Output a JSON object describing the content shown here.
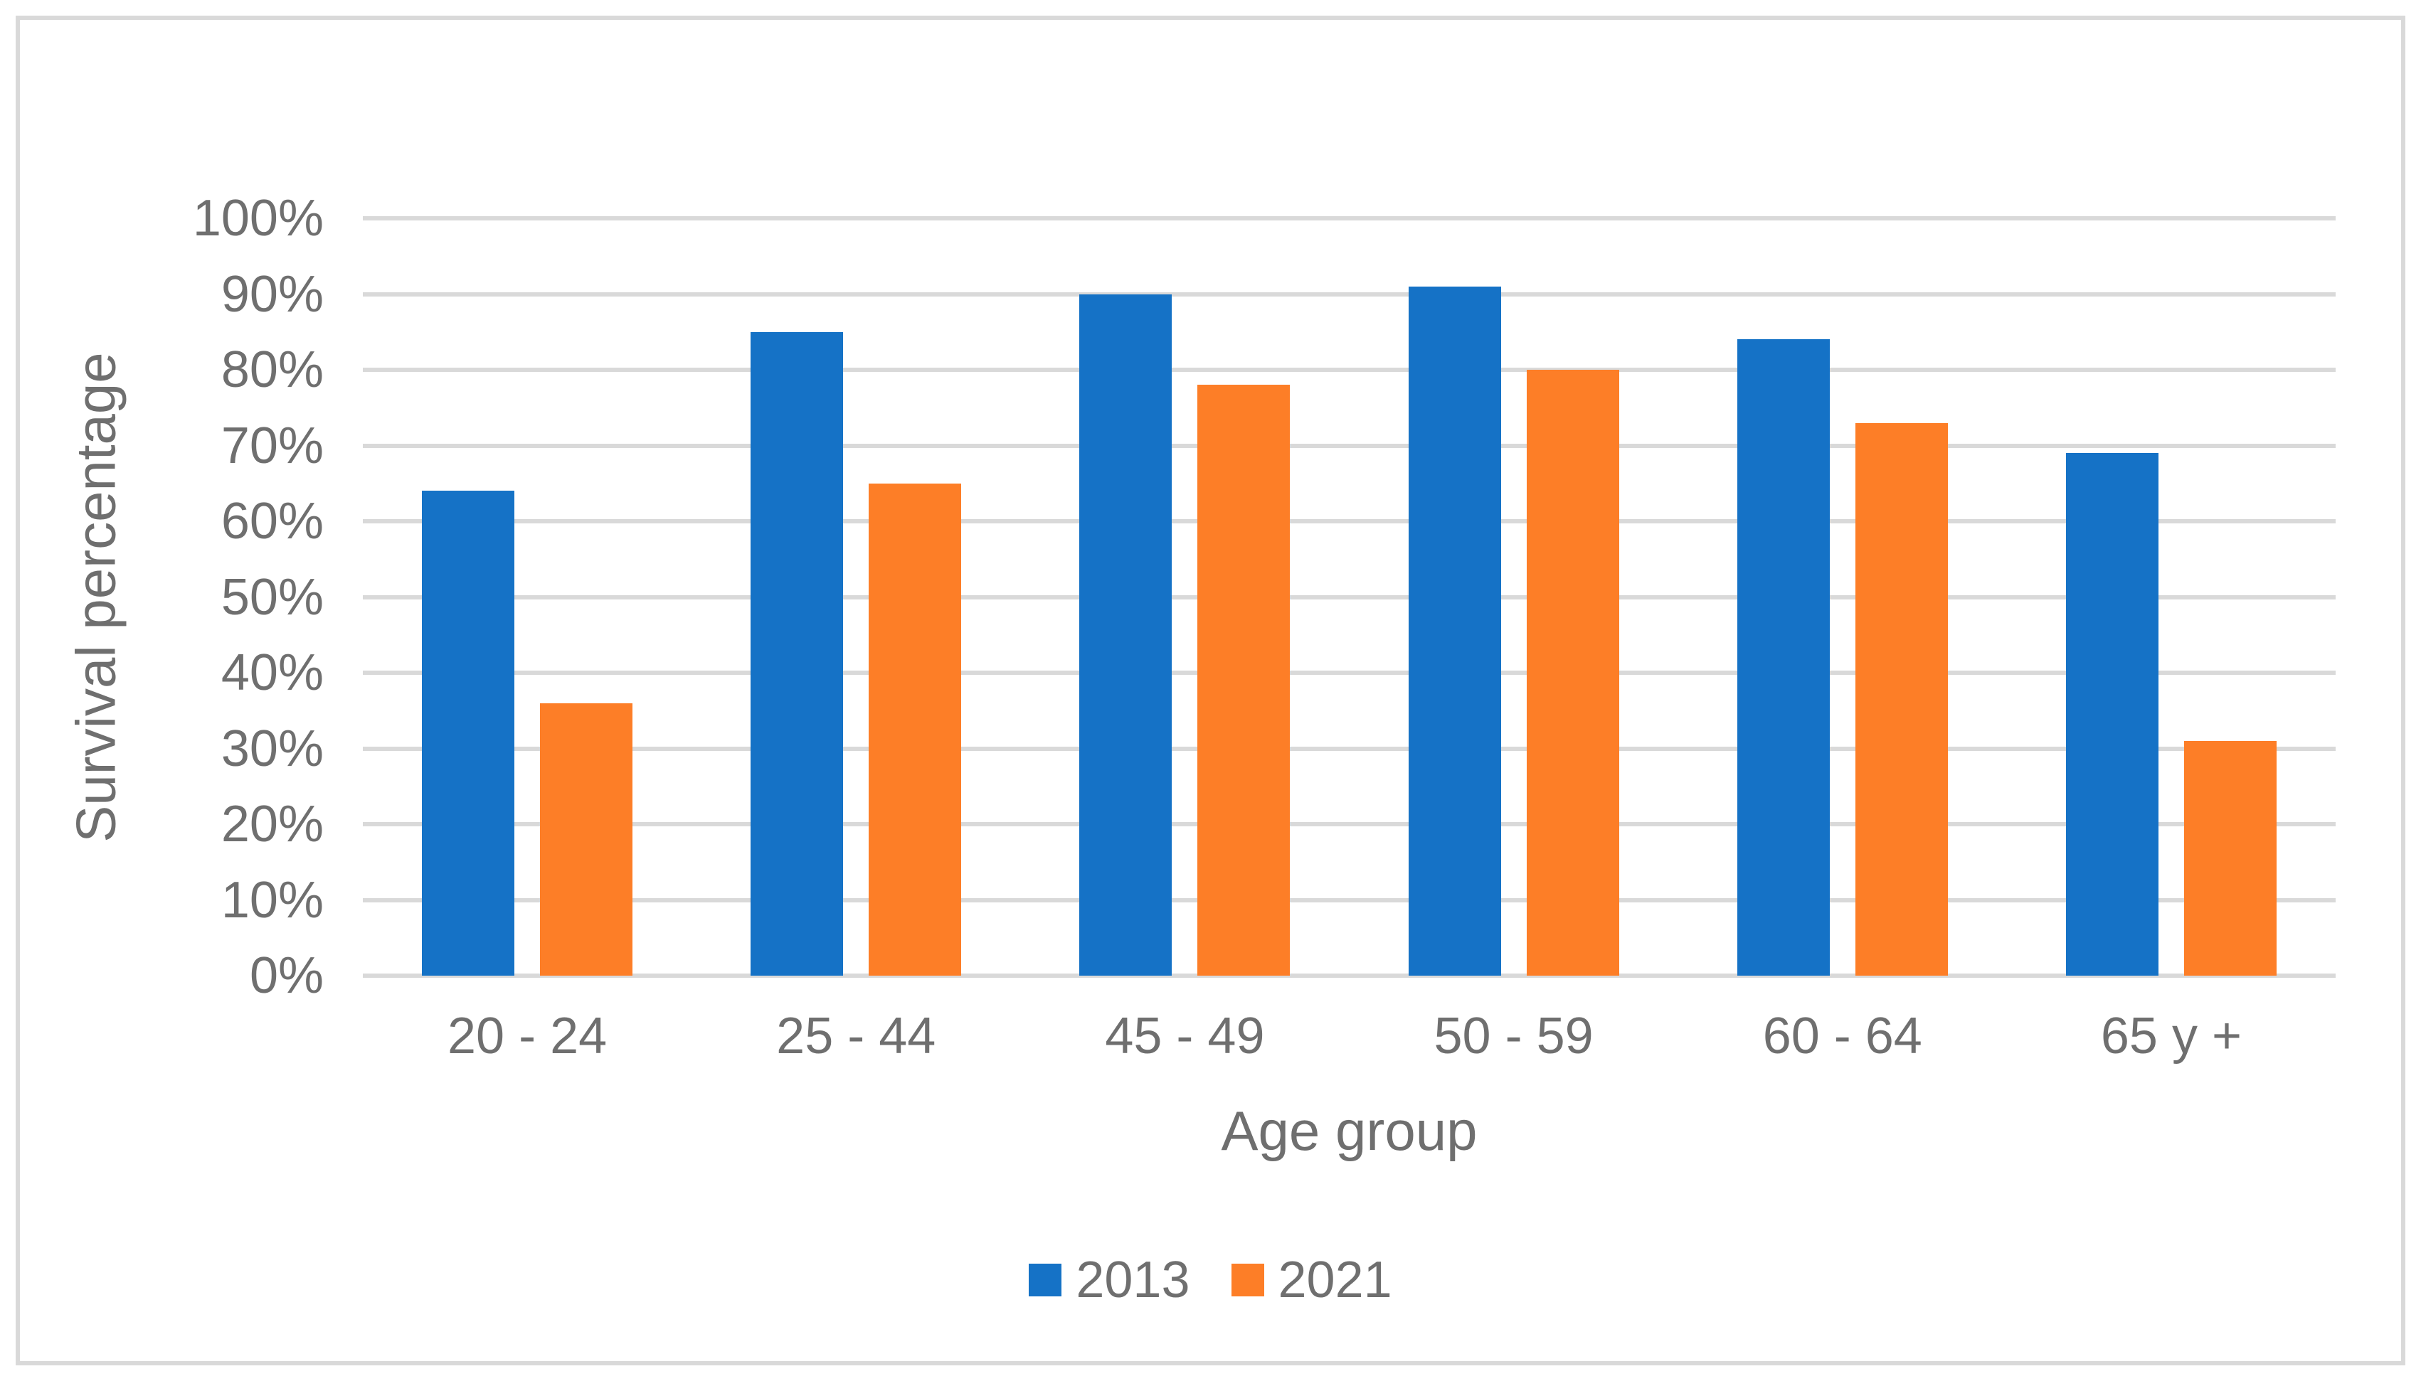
{
  "chart_data": {
    "type": "bar",
    "title": "",
    "categories": [
      "20 - 24",
      "25 - 44",
      "45 - 49",
      "50 - 59",
      "60 - 64",
      "65 y +"
    ],
    "series": [
      {
        "name": "2013",
        "color": "#1572C6",
        "values": [
          64,
          85,
          90,
          91,
          84,
          69
        ]
      },
      {
        "name": "2021",
        "color": "#FD7E27",
        "values": [
          36,
          65,
          78,
          80,
          73,
          31
        ]
      }
    ],
    "xlabel": "Age group",
    "ylabel": "Survival percentage",
    "ylim": [
      0,
      100
    ],
    "ytick_step": 10,
    "ytick_labels": [
      "0%",
      "10%",
      "20%",
      "30%",
      "40%",
      "50%",
      "60%",
      "70%",
      "80%",
      "90%",
      "100%"
    ],
    "grid": "horizontal-major",
    "legend_position": "bottom-center",
    "colors": {
      "gridline": "#D9D9D9",
      "border": "#D9D9D9",
      "text": "#6F6F6F",
      "background": "#FFFFFF"
    }
  }
}
